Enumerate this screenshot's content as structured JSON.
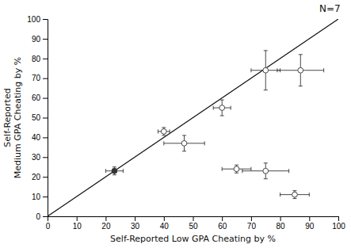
{
  "chart_data": {
    "type": "scatter",
    "x_label": "Self-Reported Low GPA Cheating by %",
    "y_label": "Self-Reported\nMedium GPA Cheating by %",
    "annotation": "N=7",
    "series": [
      {
        "type": "line",
        "x": [
          0,
          100
        ],
        "values": [
          0,
          100
        ],
        "color": "#111111"
      },
      {
        "type": "scatter",
        "marker": "circle",
        "color": "#333333",
        "x": [
          23,
          40,
          47,
          60,
          75,
          87,
          65,
          75,
          85
        ],
        "values": [
          23,
          43,
          37,
          55,
          74,
          74,
          24,
          23,
          11
        ],
        "xerr": [
          3,
          2,
          7,
          3,
          5,
          8,
          5,
          8,
          5
        ],
        "yerr": [
          2,
          2,
          4,
          4,
          10,
          8,
          2,
          4,
          2
        ],
        "colors": [
          "#333333",
          "#ffffff",
          "#ffffff",
          "#ffffff",
          "#ffffff",
          "#ffffff",
          "#ffffff",
          "#ffffff",
          "#ffffff"
        ]
      }
    ],
    "xlim": [
      0,
      100
    ],
    "ylim": [
      0,
      100
    ],
    "xticks": [
      0,
      10,
      20,
      30,
      40,
      50,
      60,
      70,
      80,
      90,
      100
    ],
    "yticks": [
      0,
      10,
      20,
      30,
      40,
      50,
      60,
      70,
      80,
      90,
      100
    ],
    "grid": false
  }
}
